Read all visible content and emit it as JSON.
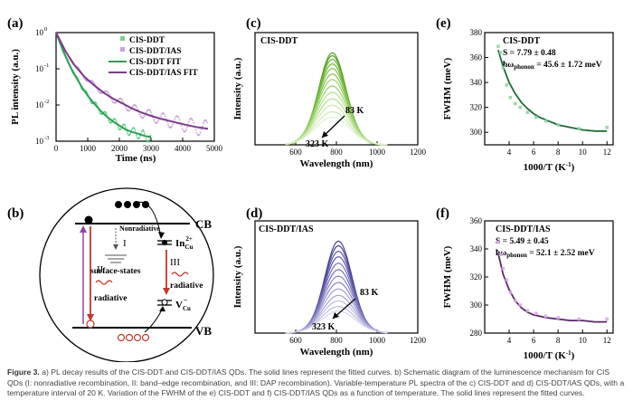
{
  "figure": {
    "caption_label": "Figure 3.",
    "caption_text": "a) PL decay results of the CIS-DDT and CIS-DDT/IAS QDs. The solid lines represent the fitted curves. b) Schematic diagram of the luminescence mechanism for CIS QDs (I: nonradiative recombination, II: band–edge recombination, and III: DAP recombination). Variable-temperature PL spectra of the c) CIS-DDT and d) CIS-DDT/IAS QDs, with a temperature interval of 20 K. Variation of the FWHM of the e) CIS-DDT and f) CIS-DDT/IAS QDs as a function of temperature. The solid lines represent the fitted curves."
  },
  "colors": {
    "green": "#2f9e55",
    "purple": "#7b3b8c",
    "lightgreen": "#8ecf5a",
    "lavender": "#7b78b8",
    "darkgreen": "#1f6b3a",
    "darkpurple": "#5a2668",
    "red": "#c0392b"
  },
  "chart_data": [
    {
      "panel": "(a)",
      "type": "scatter",
      "xlabel": "Time (ns)",
      "ylabel": "PL intensity (a.u.)",
      "xlim": [
        0,
        5000
      ],
      "ylim": [
        0.001,
        1
      ],
      "yscale": "log",
      "xticks": [
        "0",
        "1000",
        "2000",
        "3000",
        "4000",
        "5000"
      ],
      "yticks": [
        "10",
        "10",
        "10",
        "10"
      ],
      "ytick_exp": [
        "0",
        "-1",
        "-2",
        "-3"
      ],
      "legend": [
        "CIS-DDT",
        "CIS-DDT/IAS",
        "CIS-DDT  FIT",
        "CIS-DDT/IAS  FIT"
      ],
      "series": [
        {
          "name": "CIS-DDT",
          "x": [
            0,
            200,
            400,
            600,
            800,
            1000,
            1200,
            1400,
            1600,
            1800,
            2000,
            2200,
            2400,
            2600,
            2800,
            3000
          ],
          "y": [
            1,
            0.35,
            0.14,
            0.065,
            0.033,
            0.018,
            0.011,
            0.007,
            0.0048,
            0.0035,
            0.0027,
            0.0021,
            0.0018,
            0.0016,
            0.0014,
            0.0013
          ]
        },
        {
          "name": "CIS-DDT/IAS",
          "x": [
            0,
            300,
            600,
            900,
            1200,
            1500,
            1800,
            2100,
            2400,
            2700,
            3000,
            3300,
            3600,
            3900,
            4200,
            4500,
            4800
          ],
          "y": [
            1,
            0.3,
            0.12,
            0.06,
            0.035,
            0.022,
            0.015,
            0.011,
            0.008,
            0.0062,
            0.005,
            0.0042,
            0.0036,
            0.0031,
            0.0027,
            0.0024,
            0.0022
          ]
        }
      ]
    },
    {
      "panel": "(c)",
      "type": "line",
      "label": "CIS-DDT",
      "xlabel": "Wavelength (nm)",
      "ylabel": "Intensity (a.u.)",
      "xlim": [
        400,
        1200
      ],
      "xticks": [
        "600",
        "800",
        "1000",
        "1200"
      ],
      "peak_nm": 780,
      "temps_K": [
        83,
        103,
        123,
        143,
        163,
        183,
        203,
        223,
        243,
        263,
        283,
        303,
        323
      ],
      "relative_peak": [
        1.0,
        0.97,
        0.93,
        0.88,
        0.83,
        0.77,
        0.71,
        0.64,
        0.57,
        0.5,
        0.43,
        0.36,
        0.3
      ],
      "arrow_top": "83 K",
      "arrow_bottom": "323 K"
    },
    {
      "panel": "(d)",
      "type": "line",
      "label": "CIS-DDT/IAS",
      "xlabel": "Wavelength (nm)",
      "ylabel": "Intensity (a.u.)",
      "xlim": [
        400,
        1200
      ],
      "xticks": [
        "600",
        "800",
        "1000",
        "1200"
      ],
      "peak_nm": 810,
      "temps_K": [
        83,
        103,
        123,
        143,
        163,
        183,
        203,
        223,
        243,
        263,
        283,
        303,
        323
      ],
      "relative_peak": [
        1.0,
        0.95,
        0.89,
        0.83,
        0.76,
        0.69,
        0.62,
        0.55,
        0.48,
        0.41,
        0.35,
        0.29,
        0.24
      ],
      "arrow_top": "83 K",
      "arrow_bottom": "323 K"
    },
    {
      "panel": "(e)",
      "type": "scatter",
      "label": "CIS-DDT",
      "S_text": "S = 7.79 ± 0.48",
      "hw_prefix": "ħω",
      "hw_sub": "phonon",
      "hw_value": " = 45.6 ± 1.72 meV",
      "xlabel": "1000/T (K",
      "xlabel_sup": "-1",
      "xlabel_end": ")",
      "ylabel": "FWHM (meV)",
      "xlim": [
        2,
        12.5
      ],
      "ylim": [
        290,
        380
      ],
      "xticks": [
        "4",
        "6",
        "8",
        "10",
        "12"
      ],
      "yticks": [
        "300",
        "320",
        "340",
        "360",
        "380"
      ],
      "x": [
        3.1,
        3.3,
        3.5,
        3.8,
        4.1,
        4.5,
        4.9,
        5.5,
        6.2,
        7.0,
        8.0,
        9.7,
        12.0
      ],
      "y": [
        369,
        364,
        352,
        338,
        328,
        323,
        320,
        316,
        312,
        309,
        306,
        303,
        304
      ],
      "fit_x": [
        3.1,
        3.5,
        4,
        4.5,
        5,
        5.5,
        6,
        6.5,
        7,
        8,
        9,
        10,
        11,
        12
      ],
      "fit_y": [
        366,
        353,
        340,
        331,
        324,
        319,
        315,
        312,
        310,
        306,
        304,
        302,
        301,
        301
      ]
    },
    {
      "panel": "(f)",
      "type": "scatter",
      "label": "CIS-DDT/IAS",
      "S_text": "S = 5.49 ± 0.45",
      "hw_prefix": "ħω",
      "hw_sub": "phonon",
      "hw_value": " = 52.1 ± 2.52 meV",
      "xlabel": "1000/T (K",
      "xlabel_sup": "-1",
      "xlabel_end": ")",
      "ylabel": "FWHM (meV)",
      "xlim": [
        2,
        12.5
      ],
      "ylim": [
        280,
        360
      ],
      "xticks": [
        "4",
        "6",
        "8",
        "10",
        "12"
      ],
      "yticks": [
        "280",
        "300",
        "320",
        "340",
        "360"
      ],
      "x": [
        3.1,
        3.3,
        3.5,
        3.8,
        4.1,
        4.5,
        4.9,
        5.5,
        6.2,
        7.0,
        8.0,
        9.7,
        12.0
      ],
      "y": [
        345,
        336,
        326,
        318,
        309,
        303,
        300,
        296,
        294,
        292,
        291,
        290,
        290
      ],
      "fit_x": [
        3.1,
        3.5,
        4,
        4.5,
        5,
        5.5,
        6,
        6.5,
        7,
        8,
        9,
        10,
        11,
        12
      ],
      "fit_y": [
        337,
        322,
        311,
        303,
        298,
        295,
        293,
        292,
        291,
        290,
        289,
        289,
        288,
        288
      ]
    }
  ],
  "schematic": {
    "panel": "(b)",
    "cb": "CB",
    "vb": "VB",
    "nonradiative": "Nonradiative",
    "roman1": "I",
    "roman2": "II",
    "roman3": "III",
    "surface_states": "surface-states",
    "radiative": "radiative",
    "incu_base": "In",
    "incu_sub": "Cu",
    "incu_sup": "2+",
    "vcu_base": "V",
    "vcu_sub": "Cu",
    "vcu_sup": "−"
  }
}
